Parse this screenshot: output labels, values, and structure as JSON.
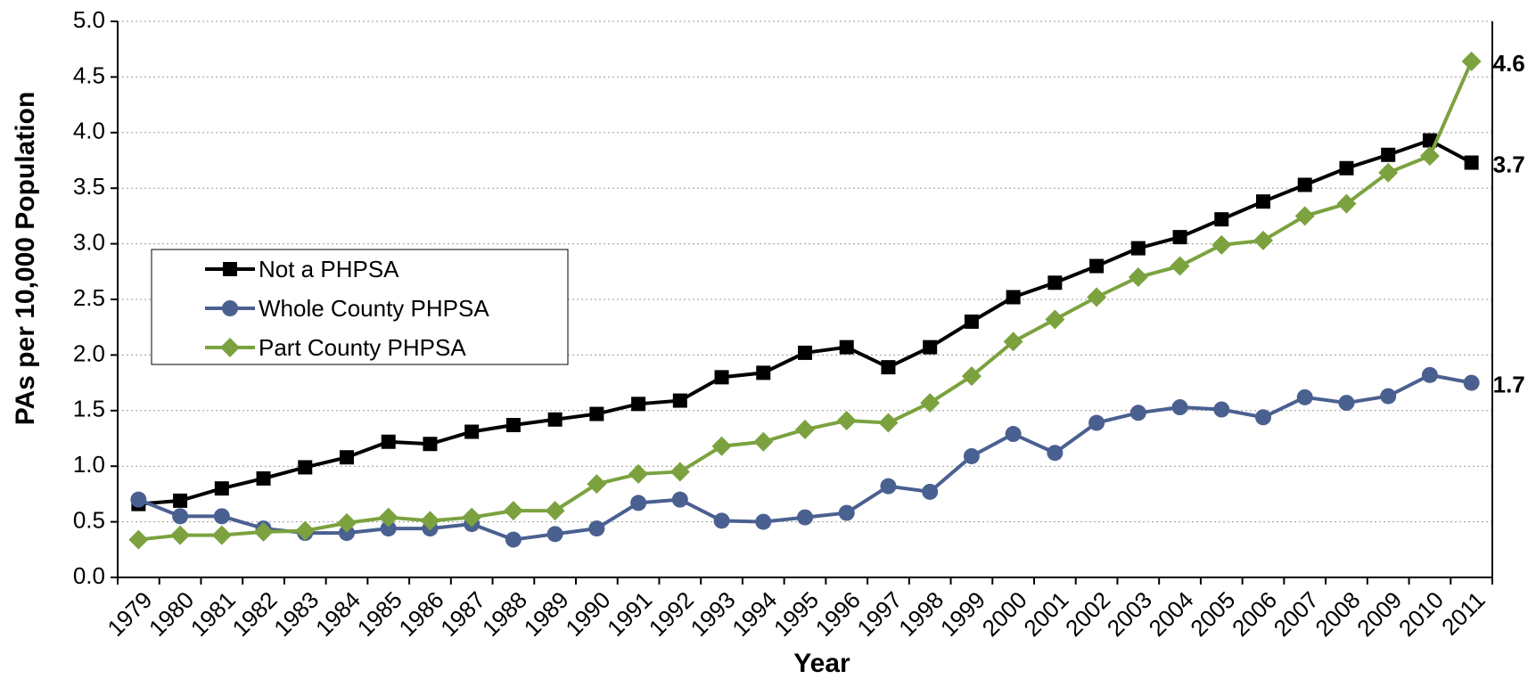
{
  "chart_data": {
    "type": "line",
    "xlabel": "Year",
    "ylabel": "PAs per 10,000 Population",
    "categories": [
      "1979",
      "1980",
      "1981",
      "1982",
      "1983",
      "1984",
      "1985",
      "1986",
      "1987",
      "1988",
      "1989",
      "1990",
      "1991",
      "1992",
      "1993",
      "1994",
      "1995",
      "1996",
      "1997",
      "1998",
      "1999",
      "2000",
      "2001",
      "2002",
      "2003",
      "2004",
      "2005",
      "2006",
      "2007",
      "2008",
      "2009",
      "2010",
      "2011"
    ],
    "series": [
      {
        "name": "Not a PHPSA",
        "color": "#000000",
        "marker": "square",
        "values": [
          0.66,
          0.69,
          0.8,
          0.89,
          0.99,
          1.08,
          1.22,
          1.2,
          1.31,
          1.37,
          1.42,
          1.47,
          1.56,
          1.59,
          1.8,
          1.84,
          2.02,
          2.07,
          1.89,
          2.07,
          2.3,
          2.52,
          2.65,
          2.8,
          2.96,
          3.06,
          3.22,
          3.38,
          3.53,
          3.68,
          3.8,
          3.93,
          3.73
        ],
        "value_labels": [
          null,
          null,
          null,
          null,
          null,
          null,
          null,
          null,
          null,
          null,
          null,
          null,
          null,
          null,
          null,
          null,
          null,
          null,
          null,
          null,
          null,
          null,
          null,
          null,
          null,
          null,
          null,
          null,
          null,
          null,
          null,
          null,
          "3.7"
        ]
      },
      {
        "name": "Whole County PHPSA",
        "color": "#4a6090",
        "marker": "circle",
        "values": [
          0.7,
          0.55,
          0.55,
          0.44,
          0.4,
          0.4,
          0.44,
          0.44,
          0.48,
          0.34,
          0.39,
          0.44,
          0.67,
          0.7,
          0.51,
          0.5,
          0.54,
          0.58,
          0.82,
          0.77,
          1.09,
          1.29,
          1.12,
          1.39,
          1.48,
          1.53,
          1.51,
          1.44,
          1.62,
          1.57,
          1.63,
          1.82,
          1.75
        ],
        "value_labels": [
          null,
          null,
          null,
          null,
          null,
          null,
          null,
          null,
          null,
          null,
          null,
          null,
          null,
          null,
          null,
          null,
          null,
          null,
          null,
          null,
          null,
          null,
          null,
          null,
          null,
          null,
          null,
          null,
          null,
          null,
          null,
          null,
          "1.7"
        ]
      },
      {
        "name": "Part County PHPSA",
        "color": "#7ba23f",
        "marker": "diamond",
        "values": [
          0.34,
          0.38,
          0.38,
          0.41,
          0.42,
          0.49,
          0.54,
          0.51,
          0.54,
          0.6,
          0.6,
          0.84,
          0.93,
          0.95,
          1.18,
          1.22,
          1.33,
          1.41,
          1.39,
          1.57,
          1.81,
          2.12,
          2.32,
          2.52,
          2.7,
          2.8,
          2.99,
          3.03,
          3.25,
          3.36,
          3.64,
          3.79,
          4.64
        ],
        "value_labels": [
          null,
          null,
          null,
          null,
          null,
          null,
          null,
          null,
          null,
          null,
          null,
          null,
          null,
          null,
          null,
          null,
          null,
          null,
          null,
          null,
          null,
          null,
          null,
          null,
          null,
          null,
          null,
          null,
          null,
          null,
          null,
          null,
          "4.6"
        ]
      }
    ],
    "ylim": [
      0,
      5
    ],
    "yticks": [
      {
        "value": 0,
        "label": "0.0"
      },
      {
        "value": 0.5,
        "label": "0.5"
      },
      {
        "value": 1,
        "label": "1.0"
      },
      {
        "value": 1.5,
        "label": "1.5"
      },
      {
        "value": 2,
        "label": "2.0"
      },
      {
        "value": 2.5,
        "label": "2.5"
      },
      {
        "value": 3,
        "label": "3.0"
      },
      {
        "value": 3.5,
        "label": "3.5"
      },
      {
        "value": 4,
        "label": "4.0"
      },
      {
        "value": 4.5,
        "label": "4.5"
      },
      {
        "value": 5,
        "label": "5.0"
      }
    ],
    "grid": true,
    "legend": "left"
  }
}
